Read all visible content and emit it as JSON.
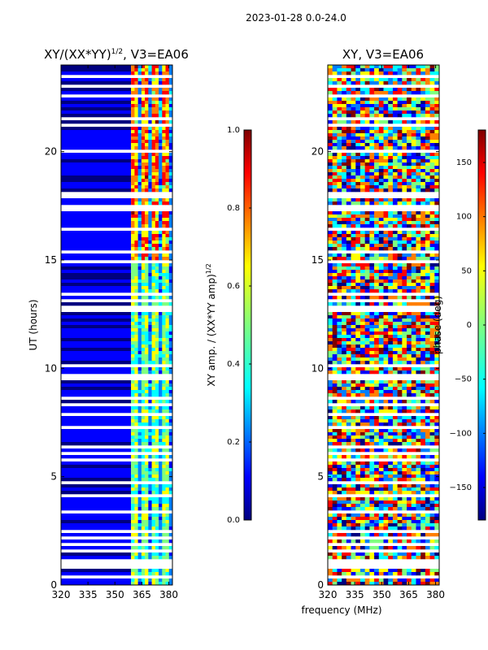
{
  "suptitle": "2023-01-28 0.0-24.0",
  "chart_data": [
    {
      "type": "heatmap",
      "title_base": "XY/(XX*YY)",
      "title_exp": "1/2",
      "title_suffix": ", V3=EA06",
      "xlabel": "",
      "ylabel": "UT (hours)",
      "xlim": [
        320,
        382
      ],
      "ylim": [
        0,
        24
      ],
      "xticks": [
        "320",
        "335",
        "350",
        "365",
        "380"
      ],
      "xtick_values": [
        320,
        335,
        350,
        365,
        380
      ],
      "yticks": [
        "0",
        "5",
        "10",
        "15",
        "20"
      ],
      "ytick_values": [
        0,
        5,
        10,
        15,
        20
      ],
      "colorbar": {
        "label_base": "XY amp. / (XX*YY amp)",
        "label_exp": "1/2",
        "range": [
          0.0,
          1.0
        ],
        "ticks": [
          "0.0",
          "0.2",
          "0.4",
          "0.6",
          "0.8",
          "1.0"
        ],
        "tick_values": [
          0.0,
          0.2,
          0.4,
          0.6,
          0.8,
          1.0
        ]
      },
      "description_bands": [
        {
          "x_start": 320,
          "x_end": 359,
          "level": 0.05
        },
        {
          "x_start": 359,
          "x_end": 382,
          "level": 0.6
        }
      ]
    },
    {
      "type": "heatmap",
      "title_base": "XY, V3=EA06",
      "xlabel": "frequency (MHz)",
      "ylabel": "",
      "xlim": [
        320,
        382
      ],
      "ylim": [
        0,
        24
      ],
      "xticks": [
        "320",
        "335",
        "350",
        "365",
        "380"
      ],
      "xtick_values": [
        320,
        335,
        350,
        365,
        380
      ],
      "yticks": [
        "0",
        "5",
        "10",
        "15",
        "20"
      ],
      "ytick_values": [
        0,
        5,
        10,
        15,
        20
      ],
      "colorbar": {
        "label": "phase (deg)",
        "range": [
          -180,
          180
        ],
        "ticks": [
          "−150",
          "−100",
          "−50",
          "0",
          "50",
          "100",
          "150"
        ],
        "tick_values": [
          -150,
          -100,
          -50,
          0,
          50,
          100,
          150
        ]
      }
    }
  ],
  "colors": {
    "jet": [
      "#00007f",
      "#0000ff",
      "#007fff",
      "#00ffff",
      "#7fff7f",
      "#ffff00",
      "#ff7f00",
      "#ff0000",
      "#7f0000"
    ],
    "axis": "#000000",
    "background": "#ffffff"
  }
}
